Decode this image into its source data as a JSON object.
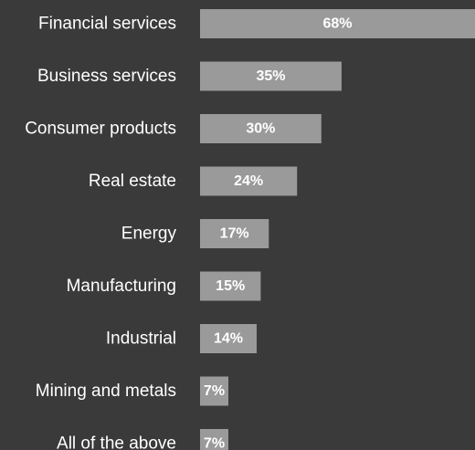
{
  "chart_data": {
    "type": "bar",
    "orientation": "horizontal",
    "categories": [
      "Financial services",
      "Business services",
      "Consumer products",
      "Real estate",
      "Energy",
      "Manufacturing",
      "Industrial",
      "Mining and metals",
      "All of the above"
    ],
    "values": [
      68,
      35,
      30,
      24,
      17,
      15,
      14,
      7,
      7
    ],
    "value_labels": [
      "68%",
      "35%",
      "30%",
      "24%",
      "17%",
      "15%",
      "14%",
      "7%",
      "7%"
    ],
    "unit": "%",
    "title": "",
    "xlabel": "",
    "ylabel": "",
    "xlim": [
      0,
      68
    ],
    "grid": false,
    "legend": "none",
    "colors": {
      "background": "#3a3a3a",
      "bar": "#9a9a9a",
      "text": "#ffffff"
    }
  }
}
